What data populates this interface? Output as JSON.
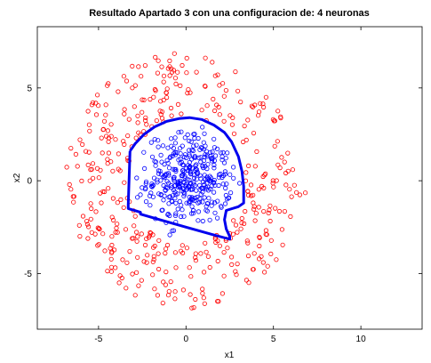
{
  "chart_data": {
    "type": "scatter",
    "title": "Resultado Apartado 3 con una configuracion de: 4 neuronas",
    "xlabel": "x1",
    "ylabel": "x2",
    "xlim": [
      -8.5,
      13.5
    ],
    "ylim": [
      -8,
      8.3
    ],
    "xticks": [
      -5,
      0,
      5,
      10
    ],
    "yticks": [
      -5,
      0,
      5
    ],
    "xtick_labels": [
      "-5",
      "0",
      "5",
      "10"
    ],
    "ytick_labels": [
      "-5",
      "0",
      "5"
    ],
    "grid": false,
    "legend": "none",
    "colors": {
      "outer": "#ff0000",
      "inner": "#0000ff",
      "boundary": "#0000ee"
    },
    "outer_ring": {
      "marker": "open-circle",
      "center": [
        0,
        0
      ],
      "r_min": 3.4,
      "r_max": 6.9,
      "count": 420
    },
    "inner_cluster": {
      "marker": "open-circle",
      "center": [
        0.2,
        0.1
      ],
      "sd": 1.2,
      "count": 360
    },
    "decision_boundary": {
      "x": [
        -3.2,
        -2.9,
        -2.4,
        -1.8,
        -1.1,
        -0.4,
        0.2,
        0.9,
        1.6,
        2.2,
        2.6,
        3.0,
        3.2,
        3.3,
        3.3,
        3.0,
        2.3,
        2.2,
        2.3,
        2.5,
        2.5,
        1.5,
        0,
        -1.5,
        -2.6,
        -2.6,
        -3.3,
        -3.3,
        -3.2
      ],
      "y": [
        1.6,
        2.0,
        2.5,
        2.9,
        3.2,
        3.35,
        3.4,
        3.3,
        3.0,
        2.6,
        2.1,
        1.3,
        0.5,
        -0.3,
        -1.2,
        -1.4,
        -1.6,
        -2.1,
        -2.6,
        -3.0,
        -3.15,
        -2.9,
        -2.5,
        -2.1,
        -1.8,
        -1.7,
        -1.5,
        -1.3,
        1.6
      ]
    }
  }
}
